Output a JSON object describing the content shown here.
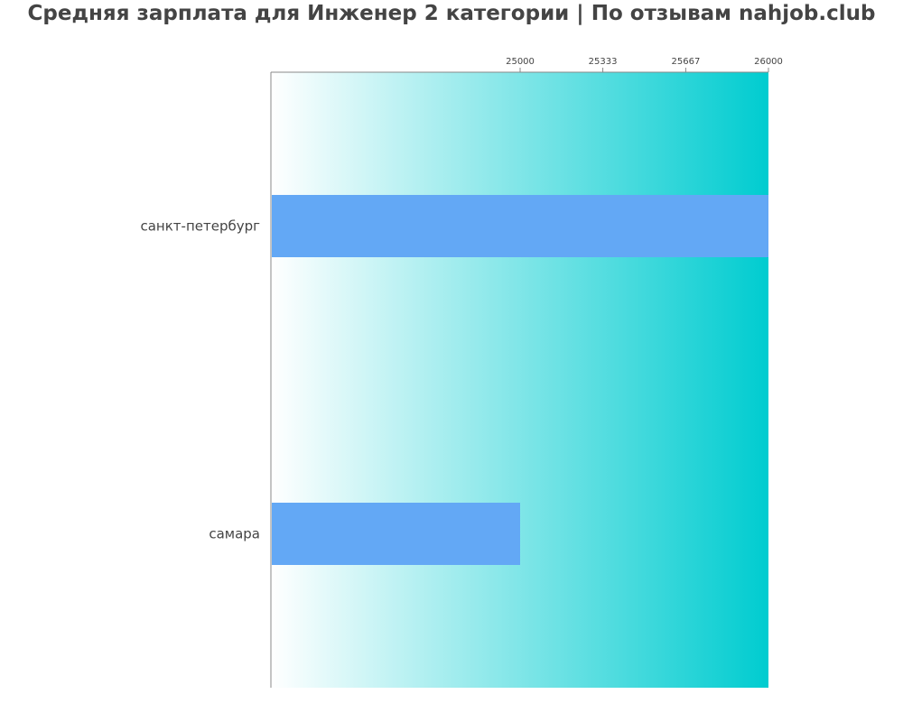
{
  "chart_data": {
    "type": "bar",
    "orientation": "horizontal",
    "title": "Средняя зарплата для Инженер 2 категории | По отзывам nahjob.club",
    "categories": [
      "санкт-петербург",
      "самара"
    ],
    "values": [
      26000,
      25000
    ],
    "xlim": [
      24000,
      26000
    ],
    "xticks": [
      "25000",
      "25333",
      "25667",
      "26000"
    ],
    "xaxis_position": "top",
    "grid": false,
    "legend": "none"
  },
  "colors": {
    "bar": "#63a8f5",
    "gradient_start": "#ffffff",
    "gradient_end": "#00ccd0",
    "axis": "#888888",
    "text": "#444444"
  }
}
